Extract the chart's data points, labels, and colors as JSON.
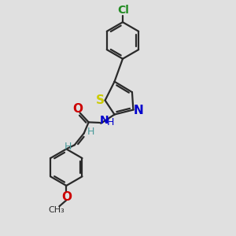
{
  "bg_color": "#e0e0e0",
  "bond_color": "#2a2a2a",
  "S_color": "#cccc00",
  "N_color": "#0000cc",
  "O_color": "#cc0000",
  "Cl_color": "#228B22",
  "H_color": "#4a9a9a",
  "line_width": 1.6,
  "font_size": 10,
  "xlim": [
    0,
    10
  ],
  "ylim": [
    0,
    10
  ]
}
